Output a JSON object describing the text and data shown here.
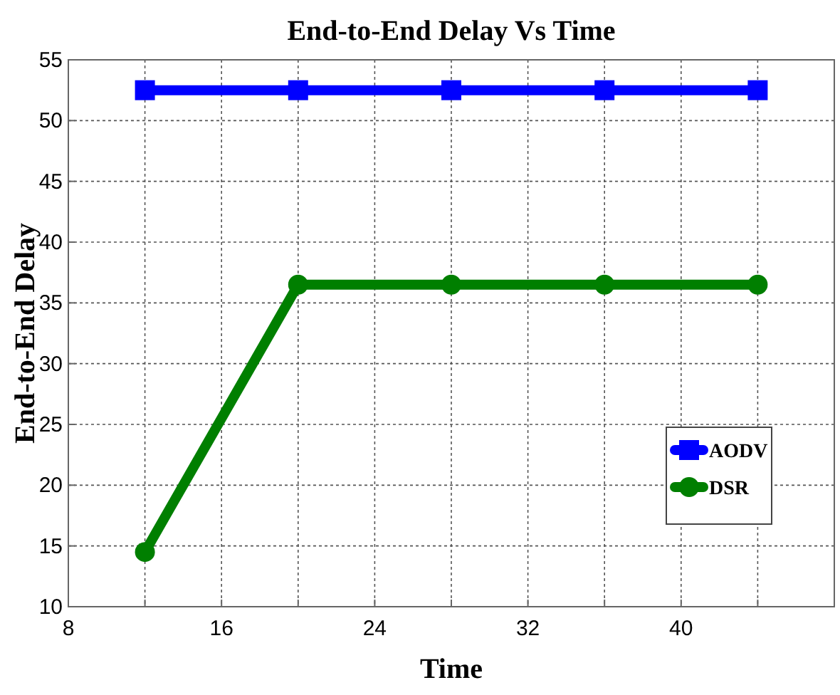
{
  "chart_data": {
    "type": "line",
    "title": "End-to-End Delay Vs Time",
    "xlabel": "Time",
    "ylabel": "End-to-End Delay",
    "x": [
      12,
      20,
      28,
      36,
      44
    ],
    "series": [
      {
        "name": "AODV",
        "color": "#0000ff",
        "marker": "square",
        "values": [
          52.5,
          52.5,
          52.5,
          52.5,
          52.5
        ]
      },
      {
        "name": "DSR",
        "color": "#007f00",
        "marker": "circle",
        "values": [
          14.5,
          36.5,
          36.5,
          36.5,
          36.5
        ]
      }
    ],
    "xlim": [
      8,
      48
    ],
    "xticks": [
      8,
      {
        "value": 12,
        "label": null
      },
      16,
      {
        "value": 20,
        "label": null
      },
      24,
      {
        "value": 28,
        "label": null
      },
      32,
      {
        "value": 36,
        "label": null
      },
      40,
      {
        "value": 44,
        "label": null
      }
    ],
    "ylim": [
      10,
      55
    ],
    "yticks": [
      10,
      15,
      20,
      25,
      30,
      35,
      40,
      45,
      50,
      55
    ],
    "grid": true,
    "legend": "right",
    "line_style": "solid"
  }
}
